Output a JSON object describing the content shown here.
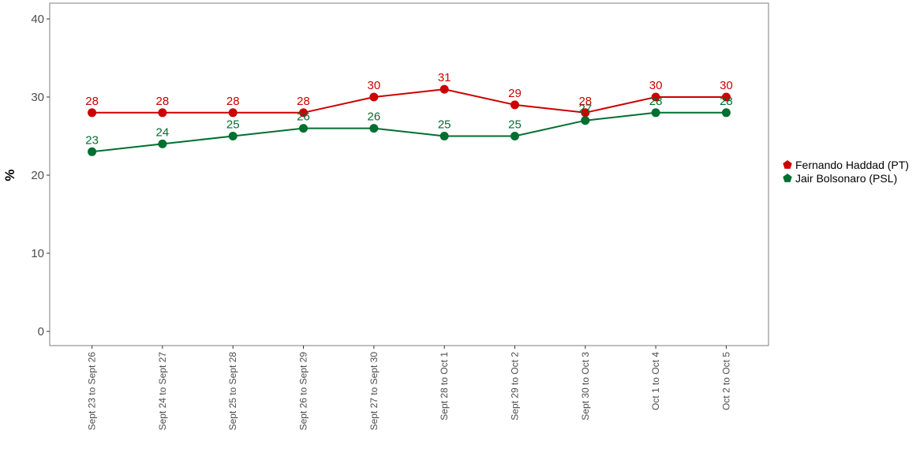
{
  "chart_data": {
    "type": "line",
    "title": "",
    "xlabel": "",
    "ylabel": "%",
    "ylim": [
      0,
      42
    ],
    "yticks": [
      0,
      10,
      20,
      30,
      40
    ],
    "grid": false,
    "legend_position": "right",
    "categories": [
      "Sept 23 to Sept 26",
      "Sept 24 to Sept 27",
      "Sept 25 to Sept 28",
      "Sept 26 to Sept 29",
      "Sept 27 to Sept 30",
      "Sept 28 to Oct 1",
      "Sept 29 to Oct 2",
      "Sept 30 to Oct 3",
      "Oct 1 to Oct 4",
      "Oct 2 to Oct 5"
    ],
    "series": [
      {
        "name": "Fernando Haddad (PT)",
        "color": "#cc0000",
        "values": [
          28,
          28,
          28,
          28,
          30,
          31,
          29,
          28,
          30,
          30
        ]
      },
      {
        "name": "Jair Bolsonaro (PSL)",
        "color": "#006f30",
        "values": [
          23,
          24,
          25,
          26,
          26,
          25,
          25,
          27,
          28,
          28
        ]
      }
    ]
  }
}
